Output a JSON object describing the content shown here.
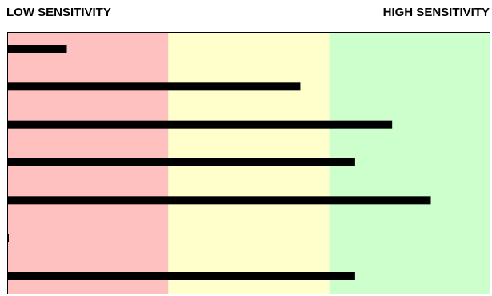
{
  "header": {
    "low_label": "LOW SENSITIVITY",
    "high_label": "HIGH SENSITIVITY"
  },
  "chart_data": {
    "type": "bar",
    "orientation": "horizontal",
    "title": "",
    "xlabel": "",
    "ylabel": "",
    "xlim": [
      0,
      3
    ],
    "grid": false,
    "bands": [
      {
        "from": 0,
        "to": 1,
        "color": "#ffc0c0"
      },
      {
        "from": 1,
        "to": 2,
        "color": "#ffffcc"
      },
      {
        "from": 2,
        "to": 3,
        "color": "#ccffcc"
      }
    ],
    "bar_color": "#000000",
    "values": [
      0.37,
      1.82,
      2.39,
      2.16,
      2.63,
      0.0,
      2.16
    ]
  }
}
